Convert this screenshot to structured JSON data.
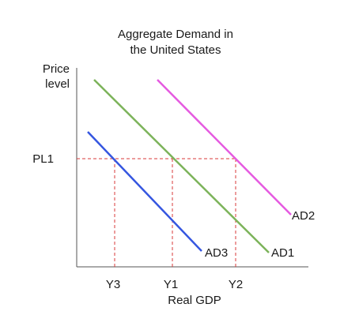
{
  "chart_data": {
    "type": "line",
    "title_lines": [
      "Aggregate Demand in",
      "the United States"
    ],
    "ylabel_lines": [
      "Price",
      "level"
    ],
    "xlabel": "Real GDP",
    "ytick": "PL1",
    "xticks": [
      "Y3",
      "Y1",
      "Y2"
    ],
    "series": [
      {
        "name": "AD1",
        "color": "#7cb35a"
      },
      {
        "name": "AD2",
        "color": "#e55ae0"
      },
      {
        "name": "AD3",
        "color": "#3556e0"
      }
    ],
    "guide_color": "#d93a3a",
    "grid": false
  }
}
